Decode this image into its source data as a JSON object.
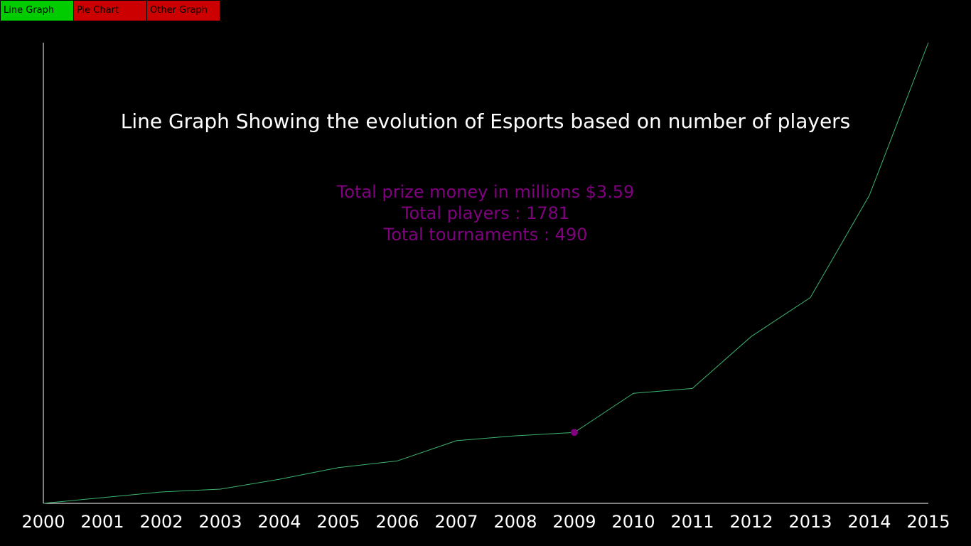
{
  "tabs": [
    {
      "label": "Line Graph",
      "color": "#00cc00",
      "active": true
    },
    {
      "label": "Pie Chart",
      "color": "#cc0000",
      "active": false
    },
    {
      "label": "Other Graph",
      "color": "#cc0000",
      "active": false
    }
  ],
  "colors": {
    "background": "#000000",
    "axis": "#ffffff",
    "line": "#3cb371",
    "highlight": "#800080",
    "title": "#ffffff"
  },
  "info": {
    "prize_line": "Total prize money in millions $3.59",
    "players_line": "Total players : 1781",
    "tournaments_line": "Total tournaments :  490"
  },
  "chart_data": {
    "type": "line",
    "title": "Line Graph Showing the evolution of Esports based on number of players",
    "xlabel": "",
    "ylabel": "",
    "x": [
      2000,
      2001,
      2002,
      2003,
      2004,
      2005,
      2006,
      2007,
      2008,
      2009,
      2010,
      2011,
      2012,
      2013,
      2014,
      2015
    ],
    "series": [
      {
        "values": [
          0,
          220,
          440,
          550,
          930,
          1380,
          1640,
          2420,
          2610,
          2740,
          4250,
          4440,
          6450,
          7950,
          11900,
          17800
        ]
      }
    ],
    "ylim": [
      0,
      17800
    ],
    "highlight_index": 9,
    "grid": false,
    "legend": "none"
  }
}
